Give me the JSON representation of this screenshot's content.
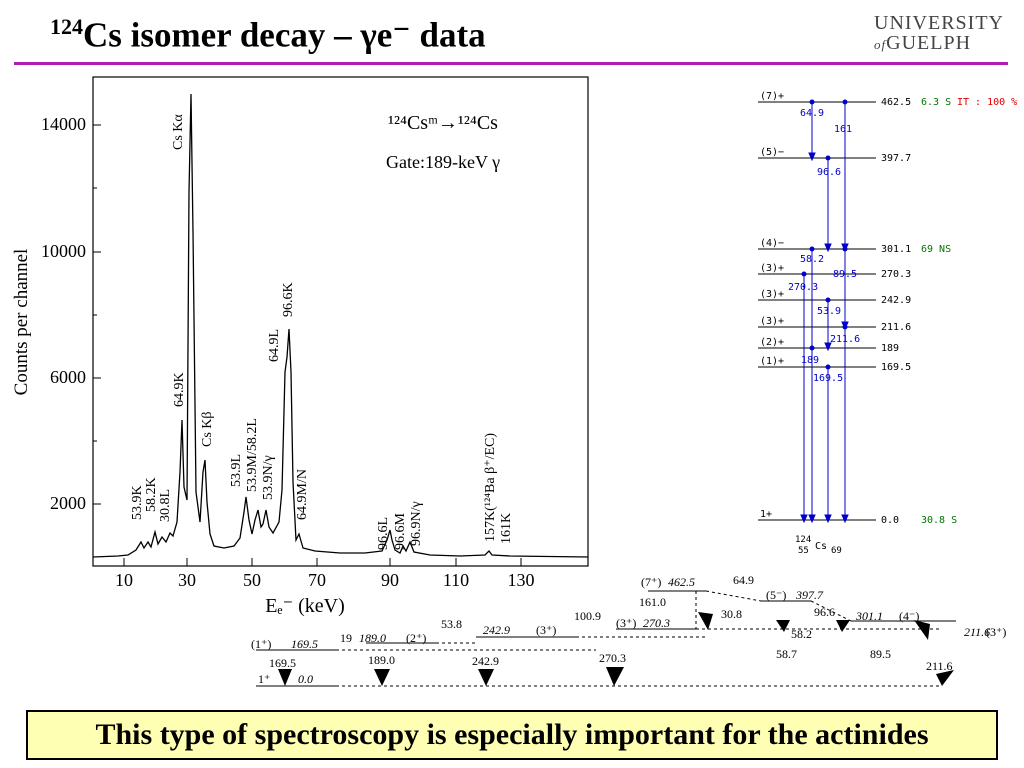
{
  "title": {
    "mass": "124",
    "text": "Cs isomer decay – γe⁻ data"
  },
  "logo": {
    "line1": "UNIVERSITY",
    "of": "of",
    "line2": "GUELPH"
  },
  "spectrum": {
    "ylabel": "Counts per channel",
    "xlabel": "Eₑ⁻ (keV)",
    "yticks": [
      "14000",
      "10000",
      "6000",
      "2000"
    ],
    "xticks": [
      "10",
      "30",
      "50",
      "70",
      "90",
      "110",
      "130"
    ],
    "inset1": "¹²⁴Csᵐ→¹²⁴Cs",
    "inset2": "Gate:189-keV γ",
    "peaks": [
      "53.9K",
      "58.2K",
      "30.8L",
      "64.9K",
      "Cs Kα",
      "Cs Kβ",
      "53.9L",
      "53.9M/58.2L",
      "53.9N/γ",
      "64.9L",
      "96.6K",
      "64.9M/N",
      "96.6L",
      "96.6M",
      "96.9N/γ",
      "157K(¹²⁴Ba β⁺/EC)",
      "161K"
    ]
  },
  "levels": {
    "states": [
      {
        "spin": "(7)+",
        "energy": "462.5",
        "half": "6.3 S",
        "branch": "IT : 100 %"
      },
      {
        "spin": "(5)−",
        "energy": "397.7"
      },
      {
        "spin": "(4)−",
        "energy": "301.1",
        "half": "69 NS"
      },
      {
        "spin": "(3)+",
        "energy": "270.3"
      },
      {
        "spin": "(3)+",
        "energy": "242.9"
      },
      {
        "spin": "(3)+",
        "energy": "211.6"
      },
      {
        "spin": "(2)+",
        "energy": "189"
      },
      {
        "spin": "(1)+",
        "energy": "169.5"
      },
      {
        "spin": "1+",
        "energy": "0.0",
        "half": "30.8 S"
      }
    ],
    "gammas": [
      "64.9",
      "161",
      "96.6",
      "58.2",
      "89.5",
      "270.3",
      "53.9",
      "211.6",
      "189",
      "169.5"
    ],
    "nucleus": {
      "mass": "124",
      "z": "55",
      "sym": "Cs",
      "n": "69"
    }
  },
  "scheme": {
    "labels": [
      "(7⁺)",
      "462.5",
      "64.9",
      "161.0",
      "(5⁻)",
      "397.7",
      "30.8",
      "96.6",
      "301.1",
      "(4⁻)",
      "58.2",
      "100.9",
      "(3⁺)",
      "270.3",
      "53.8",
      "242.9",
      "(3⁺)",
      "(1⁺)",
      "169.5",
      "19",
      "189.0",
      "(2⁺)",
      "58.7",
      "89.5",
      "211.6",
      "(3⁺)",
      "169.5",
      "189.0",
      "242.9",
      "270.3",
      "211.6",
      "1⁺",
      "0.0"
    ]
  },
  "footer": "This type of spectroscopy is especially important for the actinides",
  "colors": {
    "rule": "#b31bb3",
    "footer_bg": "#ffffb3",
    "gamma": "#0000cc",
    "halflife": "#007700",
    "branch": "#dd0000"
  }
}
